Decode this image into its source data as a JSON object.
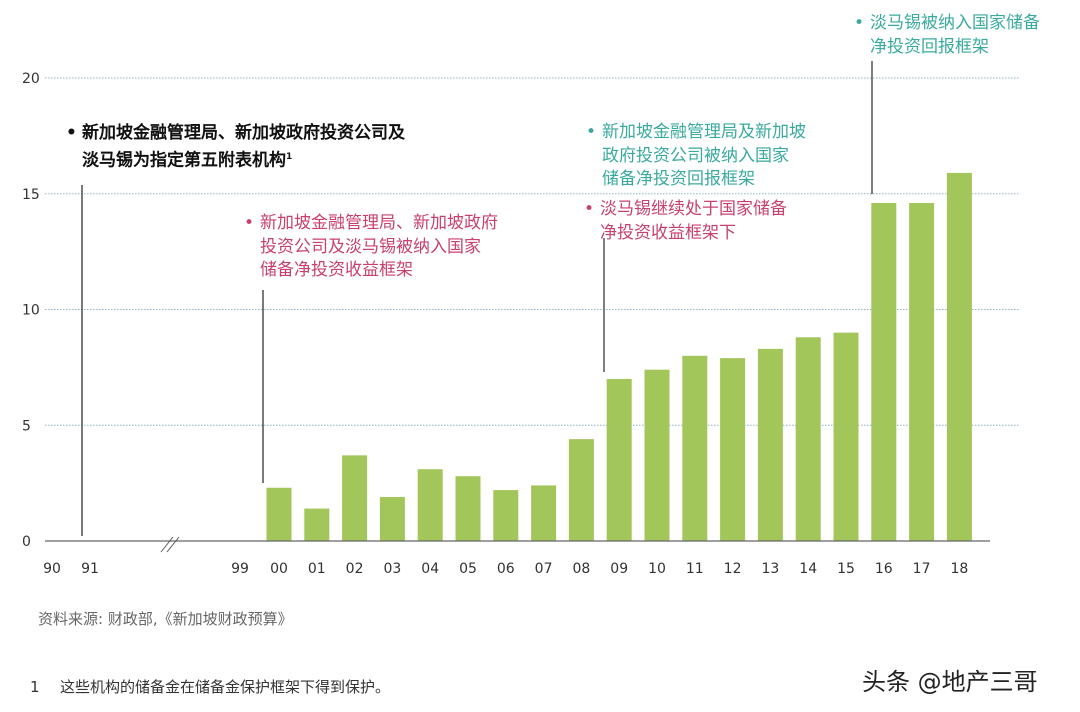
{
  "chart_data": {
    "type": "bar",
    "categories": [
      "90",
      "91",
      "99",
      "00",
      "01",
      "02",
      "03",
      "04",
      "05",
      "06",
      "07",
      "08",
      "09",
      "10",
      "11",
      "12",
      "13",
      "14",
      "15",
      "16",
      "17",
      "18"
    ],
    "values": [
      null,
      null,
      null,
      2.3,
      1.4,
      3.7,
      1.9,
      3.1,
      2.8,
      2.2,
      2.4,
      4.4,
      7.0,
      7.4,
      8.0,
      7.9,
      8.3,
      8.8,
      9.0,
      14.6,
      14.6,
      15.9
    ],
    "yticks": [
      "0",
      "5",
      "10",
      "15",
      "20"
    ],
    "ylim": [
      0,
      20
    ],
    "grid": true,
    "axis_break_after": "91",
    "colors": {
      "bar": "#a3c65a",
      "pink": "#c8416e",
      "teal": "#3aaa9e",
      "text": "#111111"
    },
    "annotations": [
      {
        "year": "91",
        "color": "black",
        "lines": [
          "新加坡金融管理局、新加坡政府投资公司及",
          "淡马锡为指定第五附表机构"
        ],
        "sup": "1"
      },
      {
        "year": "00",
        "color": "pink",
        "lines": [
          "新加坡金融管理局、新加坡政府",
          "投资公司及淡马锡被纳入国家",
          "储备净投资收益框架"
        ]
      },
      {
        "year": "09",
        "color": "teal",
        "lines": [
          "新加坡金融管理局及新加坡",
          "政府投资公司被纳入国家",
          "储备净投资回报框架"
        ]
      },
      {
        "year": "09",
        "color": "pink",
        "lines": [
          "淡马锡继续处于国家储备",
          "净投资收益框架下"
        ]
      },
      {
        "year": "16",
        "color": "teal",
        "lines": [
          "淡马锡被纳入国家储备",
          "净投资回报框架"
        ]
      }
    ]
  },
  "source": "资料来源: 财政部,《新加坡财政预算》",
  "footnote": {
    "number": "1",
    "text": "这些机构的储备金在储备金保护框架下得到保护。"
  },
  "watermark": "头条 @地产三哥"
}
